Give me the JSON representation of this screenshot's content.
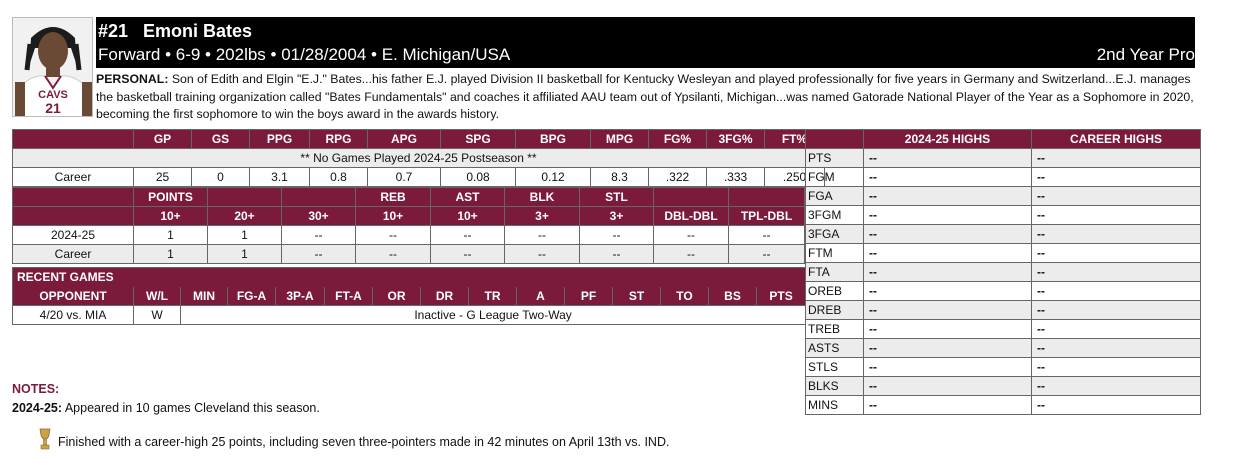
{
  "player": {
    "name_line": "#21   Emoni Bates",
    "bio_line": "Forward • 6-9 • 202lbs • 01/28/2004 • E. Michigan/USA",
    "year": "2nd Year Pro",
    "jersey_text": "CAVS",
    "jersey_number": "21"
  },
  "personal": {
    "label": "PERSONAL:",
    "text": " Son of Edith and Elgin \"E.J.\" Bates...his father E.J. played Division II basketball for Kentucky Wesleyan and played professionally for five years in Germany and Switzerland...E.J. manages the basketball training organization called \"Bates Fundamentals\" and coaches it affiliated AAU team out of Ypsilanti, Michigan...was named Gatorade National Player of the Year as a Sophomore in 2020, becoming the first sophomore to win the boys award in the awards history."
  },
  "averages": {
    "headers": [
      "",
      "GP",
      "GS",
      "PPG",
      "RPG",
      "APG",
      "SPG",
      "BPG",
      "MPG",
      "FG%",
      "3FG%",
      "FT%"
    ],
    "postseason_note": "** No Games Played 2024-25 Postseason **",
    "career_row": [
      "Career",
      "25",
      "0",
      "3.1",
      "0.8",
      "0.7",
      "0.08",
      "0.12",
      "8.3",
      ".322",
      ".333",
      ".250"
    ]
  },
  "milestones": {
    "header1": [
      "",
      "POINTS",
      "",
      "",
      "REB",
      "AST",
      "BLK",
      "STL",
      "",
      ""
    ],
    "header2": [
      "",
      "10+",
      "20+",
      "30+",
      "10+",
      "10+",
      "3+",
      "3+",
      "DBL-DBL",
      "TPL-DBL"
    ],
    "rows": [
      [
        "2024-25",
        "1",
        "1",
        "--",
        "--",
        "--",
        "--",
        "--",
        "--",
        "--"
      ],
      [
        "Career",
        "1",
        "1",
        "--",
        "--",
        "--",
        "--",
        "--",
        "--",
        "--"
      ]
    ]
  },
  "recent": {
    "title": "RECENT GAMES",
    "headers": [
      "OPPONENT",
      "W/L",
      "MIN",
      "FG-A",
      "3P-A",
      "FT-A",
      "OR",
      "DR",
      "TR",
      "A",
      "PF",
      "ST",
      "TO",
      "BS",
      "PTS"
    ],
    "game": {
      "opponent": "4/20 vs. MIA",
      "result": "W",
      "status": "Inactive - G League Two-Way"
    }
  },
  "highs": {
    "headers": [
      "",
      "2024-25 HIGHS",
      "CAREER HIGHS"
    ],
    "rows": [
      [
        "PTS",
        "--",
        "--"
      ],
      [
        "FGM",
        "--",
        "--"
      ],
      [
        "FGA",
        "--",
        "--"
      ],
      [
        "3FGM",
        "--",
        "--"
      ],
      [
        "3FGA",
        "--",
        "--"
      ],
      [
        "FTM",
        "--",
        "--"
      ],
      [
        "FTA",
        "--",
        "--"
      ],
      [
        "OREB",
        "--",
        "--"
      ],
      [
        "DREB",
        "--",
        "--"
      ],
      [
        "TREB",
        "--",
        "--"
      ],
      [
        "ASTS",
        "--",
        "--"
      ],
      [
        "STLS",
        "--",
        "--"
      ],
      [
        "BLKS",
        "--",
        "--"
      ],
      [
        "MINS",
        "--",
        "--"
      ]
    ]
  },
  "notes": {
    "title": "NOTES:",
    "season_label": "2024-25:",
    "season_text": " Appeared in 10 games Cleveland this season.",
    "career_high": "Finished with a career-high 25 points, including seven three-pointers made in 42 minutes on April 13th vs. IND.",
    "trophy_icon": "trophy-icon"
  },
  "colors": {
    "primary": "#7b1a3a",
    "header_bg": "#000000",
    "row_alt": "#ececec"
  }
}
